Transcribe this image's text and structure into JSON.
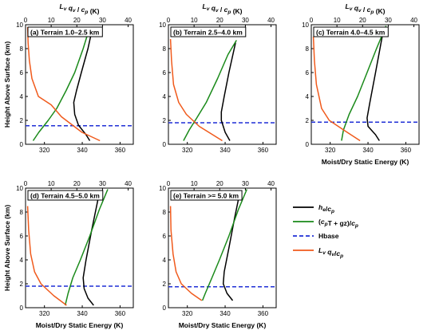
{
  "figure": {
    "top_axis_label": "L_v q_v / c_p (K)",
    "bottom_axis_label": "Moist/Dry Static Energy (K)",
    "left_axis_label": "Height Above Surface (km)"
  },
  "legend": {
    "entries": [
      {
        "key": "he",
        "label": "h_e/c_p",
        "color": "#000000",
        "dash": false
      },
      {
        "key": "dse",
        "label": "(c_pT + gz)/c_p",
        "color": "#1a8a1a",
        "dash": false
      },
      {
        "key": "hbase",
        "label": "Hbase",
        "color": "#1f2fd6",
        "dash": true
      },
      {
        "key": "lq",
        "label": "L_v q_v/c_p",
        "color": "#f05a1c",
        "dash": false
      }
    ]
  },
  "chart_data": [
    {
      "type": "line",
      "title": "(a) Terrain 1.0–2.5 km",
      "xlim": [
        310,
        367
      ],
      "x_ticks": [
        320,
        340,
        360
      ],
      "top_xlim": [
        0,
        42
      ],
      "top_x_ticks": [
        0,
        10,
        20,
        30,
        40
      ],
      "ylim": [
        0,
        10
      ],
      "y_ticks": [
        0,
        2,
        4,
        6,
        8,
        10
      ],
      "show_top_label": true,
      "show_bottom_label": false,
      "show_left_label": true,
      "hbase": 1.55,
      "series": [
        {
          "key": "he",
          "axis": "bottom",
          "x": [
            344,
            342,
            338,
            336,
            335.5,
            337,
            339.5,
            343,
            345.5
          ],
          "y": [
            0.3,
            0.8,
            1.6,
            2.5,
            3.5,
            4.5,
            6.0,
            8.0,
            9.8
          ]
        },
        {
          "key": "dse",
          "axis": "bottom",
          "x": [
            314,
            317,
            322,
            326.5,
            331.5,
            336,
            340.5,
            344
          ],
          "y": [
            0.3,
            1.0,
            2.0,
            3.0,
            4.5,
            6.0,
            8.0,
            9.8
          ]
        },
        {
          "key": "lq",
          "axis": "top",
          "x": [
            29,
            22,
            14,
            10,
            5,
            2.5,
            1.5,
            1,
            0.8
          ],
          "y": [
            0.3,
            1.0,
            2.3,
            3.3,
            4.0,
            5.5,
            7.0,
            8.5,
            9.8
          ]
        }
      ]
    },
    {
      "type": "line",
      "title": "(b) Terrain 2.5–4.0 km",
      "xlim": [
        310,
        367
      ],
      "x_ticks": [
        320,
        340,
        360
      ],
      "top_xlim": [
        0,
        42
      ],
      "top_x_ticks": [
        0,
        10,
        20,
        30,
        40
      ],
      "ylim": [
        0,
        10
      ],
      "y_ticks": [
        0,
        2,
        4,
        6,
        8,
        10
      ],
      "show_top_label": true,
      "show_bottom_label": false,
      "show_left_label": false,
      "hbase": 1.8,
      "series": [
        {
          "key": "he",
          "axis": "bottom",
          "x": [
            342.5,
            340,
            338,
            338,
            339.5,
            342,
            345.5
          ],
          "y": [
            0.3,
            1.0,
            2.0,
            2.7,
            4.0,
            6.0,
            8.5
          ]
        },
        {
          "key": "dse",
          "axis": "bottom",
          "x": [
            318,
            321,
            325,
            330,
            336,
            341.5,
            346
          ],
          "y": [
            0.3,
            1.2,
            2.2,
            3.5,
            5.5,
            7.5,
            8.7
          ]
        },
        {
          "key": "lq",
          "axis": "top",
          "x": [
            21,
            12,
            7,
            4,
            2,
            1.2,
            0.8
          ],
          "y": [
            0.3,
            1.5,
            2.5,
            3.5,
            5.0,
            7.0,
            8.8
          ]
        }
      ]
    },
    {
      "type": "line",
      "title": "(c) Terrain 4.0–4.5 km",
      "xlim": [
        310,
        367
      ],
      "x_ticks": [
        320,
        340,
        360
      ],
      "top_xlim": [
        0,
        42
      ],
      "top_x_ticks": [
        0,
        10,
        20,
        30,
        40
      ],
      "ylim": [
        0,
        10
      ],
      "y_ticks": [
        0,
        2,
        4,
        6,
        8,
        10
      ],
      "show_top_label": true,
      "show_bottom_label": true,
      "show_left_label": false,
      "hbase": 1.85,
      "series": [
        {
          "key": "he",
          "axis": "bottom",
          "x": [
            346,
            344,
            340,
            339.5,
            341,
            344,
            347.5
          ],
          "y": [
            0.3,
            0.8,
            1.5,
            2.2,
            3.5,
            6.0,
            9.0
          ]
        },
        {
          "key": "dse",
          "axis": "bottom",
          "x": [
            326,
            327,
            330,
            334.5,
            339.5,
            344.5,
            349.5
          ],
          "y": [
            0.3,
            1.2,
            2.5,
            4.0,
            6.0,
            8.0,
            9.9
          ]
        },
        {
          "key": "lq",
          "axis": "top",
          "x": [
            19,
            14,
            7,
            4,
            2,
            1.2,
            0.8
          ],
          "y": [
            0.3,
            1.0,
            2.0,
            3.0,
            5.0,
            7.0,
            9.0
          ]
        }
      ]
    },
    {
      "type": "line",
      "title": "(d) Terrain 4.5–5.0 km",
      "xlim": [
        310,
        367
      ],
      "x_ticks": [
        320,
        340,
        360
      ],
      "top_xlim": [
        0,
        42
      ],
      "top_x_ticks": [
        0,
        10,
        20,
        30,
        40
      ],
      "ylim": [
        0,
        10
      ],
      "y_ticks": [
        0,
        2,
        4,
        6,
        8,
        10
      ],
      "show_top_label": false,
      "show_bottom_label": true,
      "show_left_label": true,
      "hbase": 1.8,
      "series": [
        {
          "key": "he",
          "axis": "bottom",
          "x": [
            346,
            343,
            341,
            340.5,
            342,
            345,
            348.5
          ],
          "y": [
            0.2,
            0.8,
            1.6,
            2.5,
            4.0,
            6.5,
            9.2
          ]
        },
        {
          "key": "dse",
          "axis": "bottom",
          "x": [
            331,
            332.5,
            335,
            339,
            344,
            349,
            353.5
          ],
          "y": [
            0.2,
            1.2,
            2.5,
            4.0,
            6.0,
            8.2,
            9.9
          ]
        },
        {
          "key": "lq",
          "axis": "top",
          "x": [
            16,
            11,
            6,
            3.5,
            2,
            1.2,
            0.8
          ],
          "y": [
            0.2,
            1.0,
            2.0,
            3.0,
            4.5,
            6.5,
            8.5
          ]
        }
      ]
    },
    {
      "type": "line",
      "title": "(e) Terrain >= 5.0 km",
      "xlim": [
        310,
        367
      ],
      "x_ticks": [
        320,
        340,
        360
      ],
      "top_xlim": [
        0,
        42
      ],
      "top_x_ticks": [
        0,
        10,
        20,
        30,
        40
      ],
      "ylim": [
        0,
        10
      ],
      "y_ticks": [
        0,
        2,
        4,
        6,
        8,
        10
      ],
      "show_top_label": false,
      "show_bottom_label": true,
      "show_left_label": false,
      "hbase": 1.75,
      "series": [
        {
          "key": "he",
          "axis": "bottom",
          "x": [
            344,
            341,
            339,
            339.5,
            342,
            345,
            348
          ],
          "y": [
            0.6,
            1.2,
            2.0,
            3.0,
            5.0,
            7.5,
            9.8
          ]
        },
        {
          "key": "dse",
          "axis": "bottom",
          "x": [
            328,
            329.5,
            333,
            337,
            342,
            347,
            351.5
          ],
          "y": [
            0.6,
            1.2,
            2.5,
            4.0,
            6.0,
            8.2,
            9.9
          ]
        },
        {
          "key": "lq",
          "axis": "top",
          "x": [
            13,
            9,
            5,
            3,
            1.8,
            1,
            0.8
          ],
          "y": [
            0.6,
            1.2,
            2.0,
            3.0,
            4.5,
            6.5,
            8.5
          ]
        }
      ]
    }
  ]
}
